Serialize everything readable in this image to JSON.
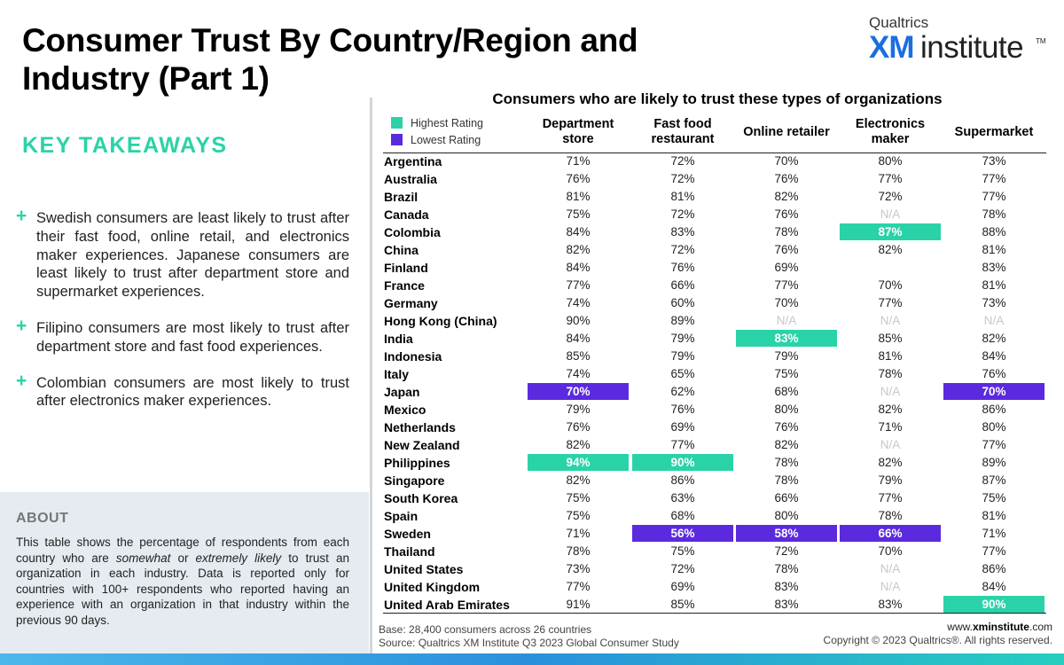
{
  "title": "Consumer Trust By Country/Region and Industry (Part 1)",
  "logo": {
    "brand": "Qualtrics",
    "xm": "XM",
    "institute": "institute",
    "tm": "TM"
  },
  "key_takeaways": {
    "heading": "KEY TAKEAWAYS",
    "items": [
      "Swedish consumers are least likely to trust after their fast food, online retail, and electronics maker experiences. Japanese consumers are least likely to trust after department store and supermarket experiences.",
      "Filipino consumers are most likely to trust after department store and fast food experiences.",
      "Colombian consumers are most likely to trust after electronics maker experiences."
    ]
  },
  "about": {
    "heading": "ABOUT",
    "text_before": "This table shows the percentage of respondents from each country who are ",
    "em1": "somewhat",
    "text_mid": " or ",
    "em2": "extremely likely",
    "text_after": " to trust an organization in each industry. Data is reported only for countries with 100+ respondents who reported having an experience with an organization in that industry within the previous 90 days."
  },
  "footer": {
    "base": "Base: 28,400 consumers across 26 countries",
    "source": "Source: Qualtrics XM Institute Q3 2023 Global Consumer Study",
    "url_prefix": "www.",
    "url_bold": "xminstitute",
    "url_suffix": ".com",
    "copyright": "Copyright © 2023 Qualtrics®. All rights reserved."
  },
  "colors": {
    "highest": "#2ad3a7",
    "lowest": "#5b2adf",
    "accent": "#2ad3a7",
    "na": "#c4c8ce"
  },
  "chart_data": {
    "type": "table",
    "title": "Consumers who are likely to trust these types of organizations",
    "legend": {
      "highest": "Highest Rating",
      "lowest": "Lowest Rating"
    },
    "columns": [
      "Department store",
      "Fast food restaurant",
      "Online retailer",
      "Electronics maker",
      "Supermarket"
    ],
    "rows": [
      {
        "country": "Argentina",
        "values": [
          "71%",
          "72%",
          "70%",
          "80%",
          "73%"
        ],
        "highlight": [
          "",
          "",
          "",
          "",
          ""
        ]
      },
      {
        "country": "Australia",
        "values": [
          "76%",
          "72%",
          "76%",
          "77%",
          "77%"
        ],
        "highlight": [
          "",
          "",
          "",
          "",
          ""
        ]
      },
      {
        "country": "Brazil",
        "values": [
          "81%",
          "81%",
          "82%",
          "72%",
          "77%"
        ],
        "highlight": [
          "",
          "",
          "",
          "",
          ""
        ]
      },
      {
        "country": "Canada",
        "values": [
          "75%",
          "72%",
          "76%",
          "N/A",
          "78%"
        ],
        "highlight": [
          "",
          "",
          "",
          "",
          ""
        ]
      },
      {
        "country": "Colombia",
        "values": [
          "84%",
          "83%",
          "78%",
          "87%",
          "88%"
        ],
        "highlight": [
          "",
          "",
          "",
          "high",
          ""
        ]
      },
      {
        "country": "China",
        "values": [
          "82%",
          "72%",
          "76%",
          "82%",
          "81%"
        ],
        "highlight": [
          "",
          "",
          "",
          "",
          ""
        ]
      },
      {
        "country": "Finland",
        "values": [
          "84%",
          "76%",
          "69%",
          "",
          "83%"
        ],
        "highlight": [
          "",
          "",
          "",
          "",
          ""
        ]
      },
      {
        "country": "France",
        "values": [
          "77%",
          "66%",
          "77%",
          "70%",
          "81%"
        ],
        "highlight": [
          "",
          "",
          "",
          "",
          ""
        ]
      },
      {
        "country": "Germany",
        "values": [
          "74%",
          "60%",
          "70%",
          "77%",
          "73%"
        ],
        "highlight": [
          "",
          "",
          "",
          "",
          ""
        ]
      },
      {
        "country": "Hong Kong (China)",
        "values": [
          "90%",
          "89%",
          "N/A",
          "N/A",
          "N/A"
        ],
        "highlight": [
          "",
          "",
          "",
          "",
          ""
        ]
      },
      {
        "country": "India",
        "values": [
          "84%",
          "79%",
          "83%",
          "85%",
          "82%"
        ],
        "highlight": [
          "",
          "",
          "high",
          "",
          ""
        ]
      },
      {
        "country": "Indonesia",
        "values": [
          "85%",
          "79%",
          "79%",
          "81%",
          "84%"
        ],
        "highlight": [
          "",
          "",
          "",
          "",
          ""
        ]
      },
      {
        "country": "Italy",
        "values": [
          "74%",
          "65%",
          "75%",
          "78%",
          "76%"
        ],
        "highlight": [
          "",
          "",
          "",
          "",
          ""
        ]
      },
      {
        "country": "Japan",
        "values": [
          "70%",
          "62%",
          "68%",
          "N/A",
          "70%"
        ],
        "highlight": [
          "low",
          "",
          "",
          "",
          "low"
        ]
      },
      {
        "country": "Mexico",
        "values": [
          "79%",
          "76%",
          "80%",
          "82%",
          "86%"
        ],
        "highlight": [
          "",
          "",
          "",
          "",
          ""
        ]
      },
      {
        "country": "Netherlands",
        "values": [
          "76%",
          "69%",
          "76%",
          "71%",
          "80%"
        ],
        "highlight": [
          "",
          "",
          "",
          "",
          ""
        ]
      },
      {
        "country": "New Zealand",
        "values": [
          "82%",
          "77%",
          "82%",
          "N/A",
          "77%"
        ],
        "highlight": [
          "",
          "",
          "",
          "",
          ""
        ]
      },
      {
        "country": "Philippines",
        "values": [
          "94%",
          "90%",
          "78%",
          "82%",
          "89%"
        ],
        "highlight": [
          "high",
          "high",
          "",
          "",
          ""
        ]
      },
      {
        "country": "Singapore",
        "values": [
          "82%",
          "86%",
          "78%",
          "79%",
          "87%"
        ],
        "highlight": [
          "",
          "",
          "",
          "",
          ""
        ]
      },
      {
        "country": "South Korea",
        "values": [
          "75%",
          "63%",
          "66%",
          "77%",
          "75%"
        ],
        "highlight": [
          "",
          "",
          "",
          "",
          ""
        ]
      },
      {
        "country": "Spain",
        "values": [
          "75%",
          "68%",
          "80%",
          "78%",
          "81%"
        ],
        "highlight": [
          "",
          "",
          "",
          "",
          ""
        ]
      },
      {
        "country": "Sweden",
        "values": [
          "71%",
          "56%",
          "58%",
          "66%",
          "71%"
        ],
        "highlight": [
          "",
          "low",
          "low",
          "low",
          ""
        ]
      },
      {
        "country": "Thailand",
        "values": [
          "78%",
          "75%",
          "72%",
          "70%",
          "77%"
        ],
        "highlight": [
          "",
          "",
          "",
          "",
          ""
        ]
      },
      {
        "country": "United States",
        "values": [
          "73%",
          "72%",
          "78%",
          "N/A",
          "86%"
        ],
        "highlight": [
          "",
          "",
          "",
          "",
          ""
        ]
      },
      {
        "country": "United Kingdom",
        "values": [
          "77%",
          "69%",
          "83%",
          "N/A",
          "84%"
        ],
        "highlight": [
          "",
          "",
          "",
          "",
          ""
        ]
      },
      {
        "country": "United Arab Emirates",
        "values": [
          "91%",
          "85%",
          "83%",
          "83%",
          "90%"
        ],
        "highlight": [
          "",
          "",
          "",
          "",
          "high"
        ]
      }
    ]
  }
}
